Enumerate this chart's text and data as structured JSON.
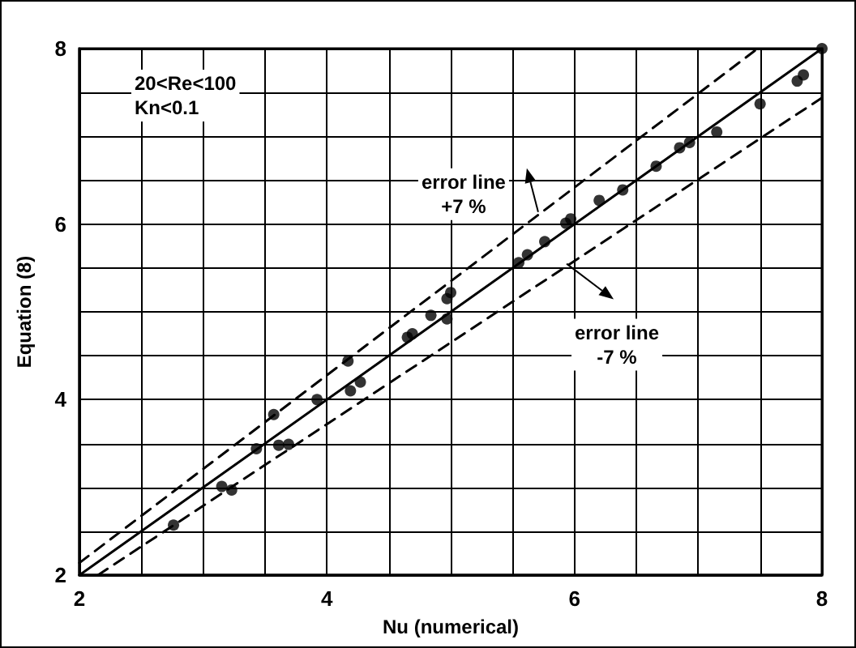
{
  "chart_data": {
    "type": "scatter",
    "xlabel": "Nu (numerical)",
    "ylabel": "Equation (8)",
    "xlim": [
      2,
      8
    ],
    "ylim": [
      2,
      8
    ],
    "xticks": [
      2,
      {
        "value": 2.5,
        "label": null
      },
      {
        "value": 3,
        "label": null
      },
      {
        "value": 3.5,
        "label": null
      },
      4,
      {
        "value": 4.5,
        "label": null
      },
      {
        "value": 5,
        "label": null
      },
      {
        "value": 5.5,
        "label": null
      },
      6,
      {
        "value": 6.5,
        "label": null
      },
      {
        "value": 7,
        "label": null
      },
      {
        "value": 7.5,
        "label": null
      },
      8
    ],
    "yticks": [
      2,
      {
        "value": 2.5,
        "label": null
      },
      {
        "value": 3,
        "label": null
      },
      {
        "value": 3.5,
        "label": null
      },
      4,
      {
        "value": 4.5,
        "label": null
      },
      {
        "value": 5,
        "label": null
      },
      {
        "value": 5.5,
        "label": null
      },
      6,
      {
        "value": 6.5,
        "label": null
      },
      {
        "value": 7,
        "label": null
      },
      {
        "value": 7.5,
        "label": null
      },
      8
    ],
    "grid": true,
    "marker": "circle",
    "series": [
      {
        "color": "#000000",
        "x": [
          2.76,
          3.15,
          3.23,
          3.43,
          3.57,
          3.61,
          3.69,
          3.92,
          4.17,
          4.19,
          4.27,
          4.65,
          4.69,
          4.84,
          4.97,
          4.97,
          5.0,
          5.55,
          5.62,
          5.76,
          5.93,
          5.97,
          6.2,
          6.39,
          6.66,
          6.85,
          6.93,
          7.15,
          7.5,
          7.8,
          7.85,
          8.0
        ],
        "values": [
          2.57,
          3.01,
          2.97,
          3.44,
          3.83,
          3.48,
          3.49,
          4.0,
          4.44,
          4.1,
          4.2,
          4.71,
          4.75,
          4.96,
          4.92,
          5.15,
          5.22,
          5.56,
          5.65,
          5.8,
          6.01,
          6.06,
          6.27,
          6.39,
          6.66,
          6.87,
          6.93,
          7.05,
          7.37,
          7.63,
          7.7,
          8.0
        ]
      },
      {
        "type": "line",
        "color": "#000000",
        "marker": "none",
        "line_style": "solid",
        "x": [
          2,
          8
        ],
        "values": [
          2,
          8
        ]
      },
      {
        "type": "line",
        "color": "#000000",
        "marker": "none",
        "line_style": "dashed",
        "x": [
          2,
          7.48
        ],
        "values": [
          2.14,
          8
        ]
      },
      {
        "type": "line",
        "color": "#000000",
        "marker": "none",
        "line_style": "dashed",
        "x": [
          2.15,
          8
        ],
        "values": [
          2,
          7.44
        ]
      }
    ],
    "annotations": [
      "20<Re<100\nKn<0.1",
      {
        "text": "error line\n+7 %",
        "x": 5.72,
        "y": 6.12
      },
      {
        "text": "error line\n-7 %",
        "x": 5.95,
        "y": 5.53
      }
    ]
  }
}
